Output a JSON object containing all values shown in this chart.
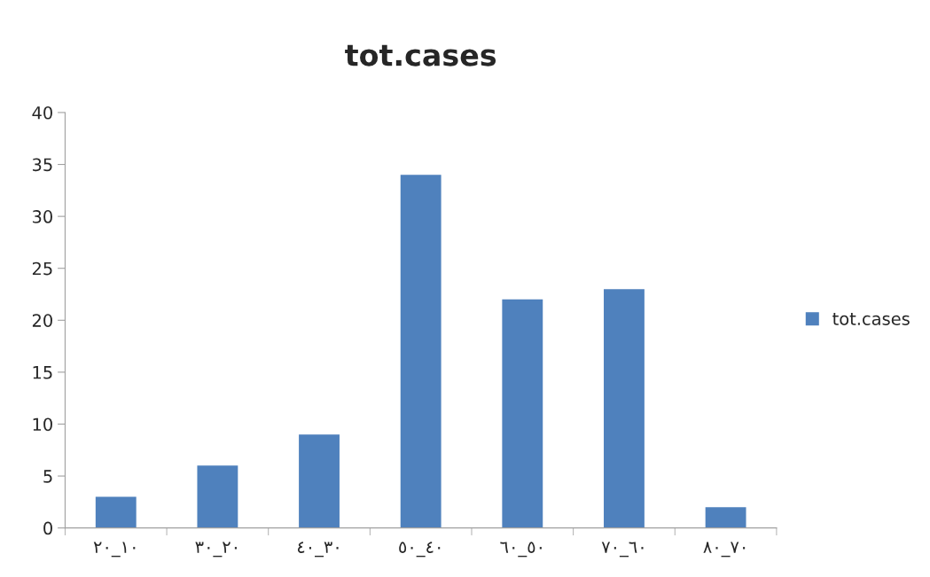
{
  "chart_data": {
    "type": "bar",
    "title": "tot.cases",
    "categories": [
      "٢٠_١٠",
      "٣٠_٢٠",
      "٤٠_٣٠",
      "٥٠_٤٠",
      "٦٠_٥٠",
      "٧٠_٦٠",
      "٨٠_٧٠"
    ],
    "series": [
      {
        "name": "tot.cases",
        "color": "#4f81bd",
        "values": [
          3,
          6,
          9,
          34,
          22,
          23,
          2
        ]
      }
    ],
    "ylim": [
      0,
      40
    ],
    "yticks": [
      0,
      5,
      10,
      15,
      20,
      25,
      30,
      35,
      40
    ],
    "grid": false,
    "legend": "right"
  }
}
